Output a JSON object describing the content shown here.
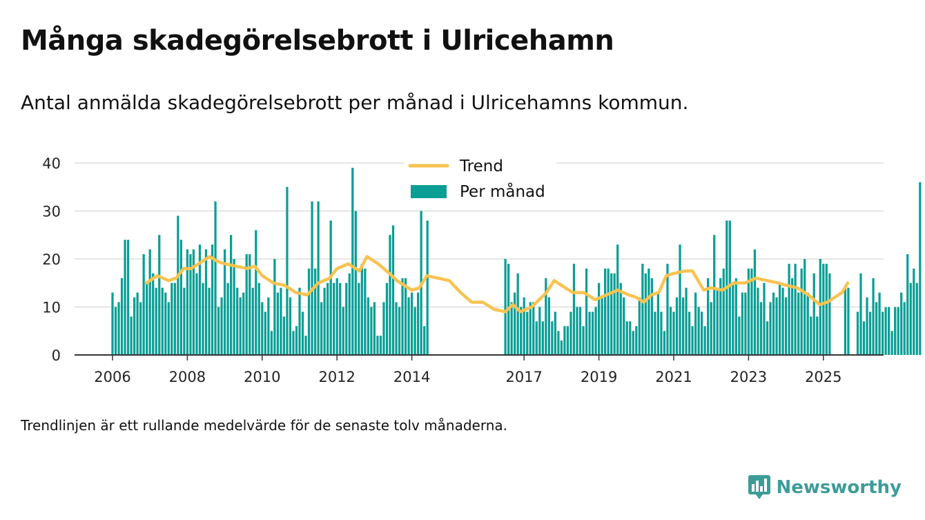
{
  "title": "Många skadegörelsebrott i Ulricehamn",
  "subtitle": "Antal anmälda skadegörelsebrott per månad i Ulricehamns kommun.",
  "footnote": "Trendlinjen är ett rullande medelvärde för de senaste tolv månaderna.",
  "brand": {
    "name": "Newsworthy",
    "icon": "newsworthy-logo-icon"
  },
  "colors": {
    "bars": "#0a9e95",
    "trend": "#f8c350",
    "grid": "#dddddd",
    "axis": "#333333",
    "brand": "#3d9c98"
  },
  "chart_data": {
    "type": "bar",
    "title": "Många skadegörelsebrott i Ulricehamn",
    "ylim": [
      0,
      40
    ],
    "y_ticks": [
      0,
      10,
      20,
      30,
      40
    ],
    "x_tick_labels": [
      "2006",
      "2008",
      "2010",
      "2012",
      "2014",
      "2017",
      "2019",
      "2021",
      "2023",
      "2025"
    ],
    "x_tick_years": [
      2006,
      2008,
      2010,
      2012,
      2014,
      2017,
      2019,
      2021,
      2023,
      2025
    ],
    "grid": true,
    "legend_placement": "top-center",
    "categories_start": "2006-01",
    "categories_end": "2025-09",
    "series": [
      {
        "name": "Per månad",
        "type": "bar",
        "note_missing": "2014-07 – 2016-06 and 2023-09 – 2023-12 not shown",
        "values": [
          13,
          10,
          11,
          16,
          24,
          24,
          8,
          12,
          13,
          11,
          21,
          15,
          22,
          17,
          14,
          25,
          14,
          13,
          11,
          15,
          15,
          29,
          24,
          14,
          22,
          21,
          22,
          17,
          23,
          15,
          22,
          14,
          23,
          32,
          10,
          12,
          22,
          15,
          25,
          20,
          14,
          12,
          13,
          21,
          21,
          14,
          26,
          15,
          11,
          9,
          12,
          5,
          20,
          13,
          14,
          8,
          35,
          12,
          5,
          6,
          14,
          9,
          4,
          18,
          32,
          18,
          32,
          11,
          14,
          15,
          28,
          15,
          16,
          15,
          10,
          15,
          17,
          39,
          30,
          15,
          19,
          18,
          12,
          10,
          11,
          4,
          4,
          11,
          15,
          25,
          27,
          11,
          10,
          16,
          16,
          12,
          13,
          10,
          13,
          30,
          6,
          28,
          20,
          19,
          11,
          13,
          17,
          10,
          12,
          9,
          11,
          11,
          7,
          10,
          7,
          16,
          12,
          7,
          9,
          5,
          3,
          6,
          6,
          9,
          19,
          10,
          10,
          6,
          18,
          9,
          9,
          10,
          15,
          12,
          18,
          18,
          17,
          17,
          23,
          15,
          12,
          7,
          7,
          5,
          6,
          12,
          19,
          17,
          18,
          16,
          9,
          13,
          9,
          5,
          19,
          10,
          9,
          12,
          23,
          12,
          14,
          9,
          6,
          13,
          10,
          9,
          6,
          16,
          11,
          25,
          14,
          16,
          18,
          28,
          28,
          15,
          16,
          8,
          13,
          13,
          18,
          18,
          22,
          14,
          11,
          15,
          7,
          11,
          13,
          12,
          15,
          14,
          12,
          19,
          16,
          19,
          13,
          18,
          20,
          13,
          8,
          17,
          8,
          20,
          19,
          19,
          17,
          0,
          0,
          0,
          0,
          14,
          14,
          0,
          0,
          9,
          17,
          7,
          12,
          9,
          16,
          11,
          13,
          9,
          10,
          10,
          5,
          10,
          10,
          13,
          11,
          21,
          15,
          18,
          15,
          36
        ]
      },
      {
        "name": "Trend",
        "type": "line",
        "x_years": [
          2006.9,
          2007.2,
          2007.5,
          2007.7,
          2007.9,
          2008.1,
          2008.3,
          2008.6,
          2008.8,
          2009.0,
          2009.3,
          2009.6,
          2009.8,
          2010.0,
          2010.3,
          2010.6,
          2010.9,
          2011.2,
          2011.5,
          2011.8,
          2012.0,
          2012.3,
          2012.6,
          2012.8,
          2013.1,
          2013.4,
          2013.6,
          2013.8,
          2014.0,
          2014.2,
          2014.4,
          2014.7,
          2015.0,
          2015.3,
          2015.6,
          2015.9,
          2016.2,
          2016.5,
          2016.7,
          2016.9,
          2017.2,
          2017.4,
          2017.6,
          2017.8,
          2018.0,
          2018.3,
          2018.6,
          2018.9,
          2019.2,
          2019.5,
          2019.8,
          2020.0,
          2020.2,
          2020.4,
          2020.6,
          2020.8,
          2021.0,
          2021.3,
          2021.5,
          2021.8,
          2022.0,
          2022.3,
          2022.6,
          2022.9,
          2023.2,
          2023.5,
          2023.8,
          2024.0,
          2024.3,
          2024.6,
          2024.9,
          2025.1,
          2025.3,
          2025.5,
          2025.65
        ],
        "values": [
          15,
          16.5,
          15.5,
          16,
          18,
          18,
          19,
          20.5,
          19.5,
          19,
          18.5,
          18,
          18.5,
          16.5,
          15,
          14.5,
          13,
          12.5,
          15,
          16,
          18,
          19,
          17.5,
          20.5,
          19,
          17,
          15.5,
          14.5,
          13.5,
          14,
          16.5,
          16,
          15.5,
          13,
          11,
          11,
          9.5,
          9,
          10.5,
          9,
          10,
          11.5,
          13,
          15.5,
          14.5,
          13,
          13,
          11.5,
          12.5,
          13.5,
          12.5,
          12,
          11,
          12.5,
          13,
          16.5,
          17,
          17.5,
          17.5,
          13.5,
          14,
          13.5,
          15,
          15,
          16,
          15.5,
          15,
          14.5,
          14,
          12.5,
          10.5,
          11,
          12,
          13,
          15
        ]
      }
    ]
  }
}
